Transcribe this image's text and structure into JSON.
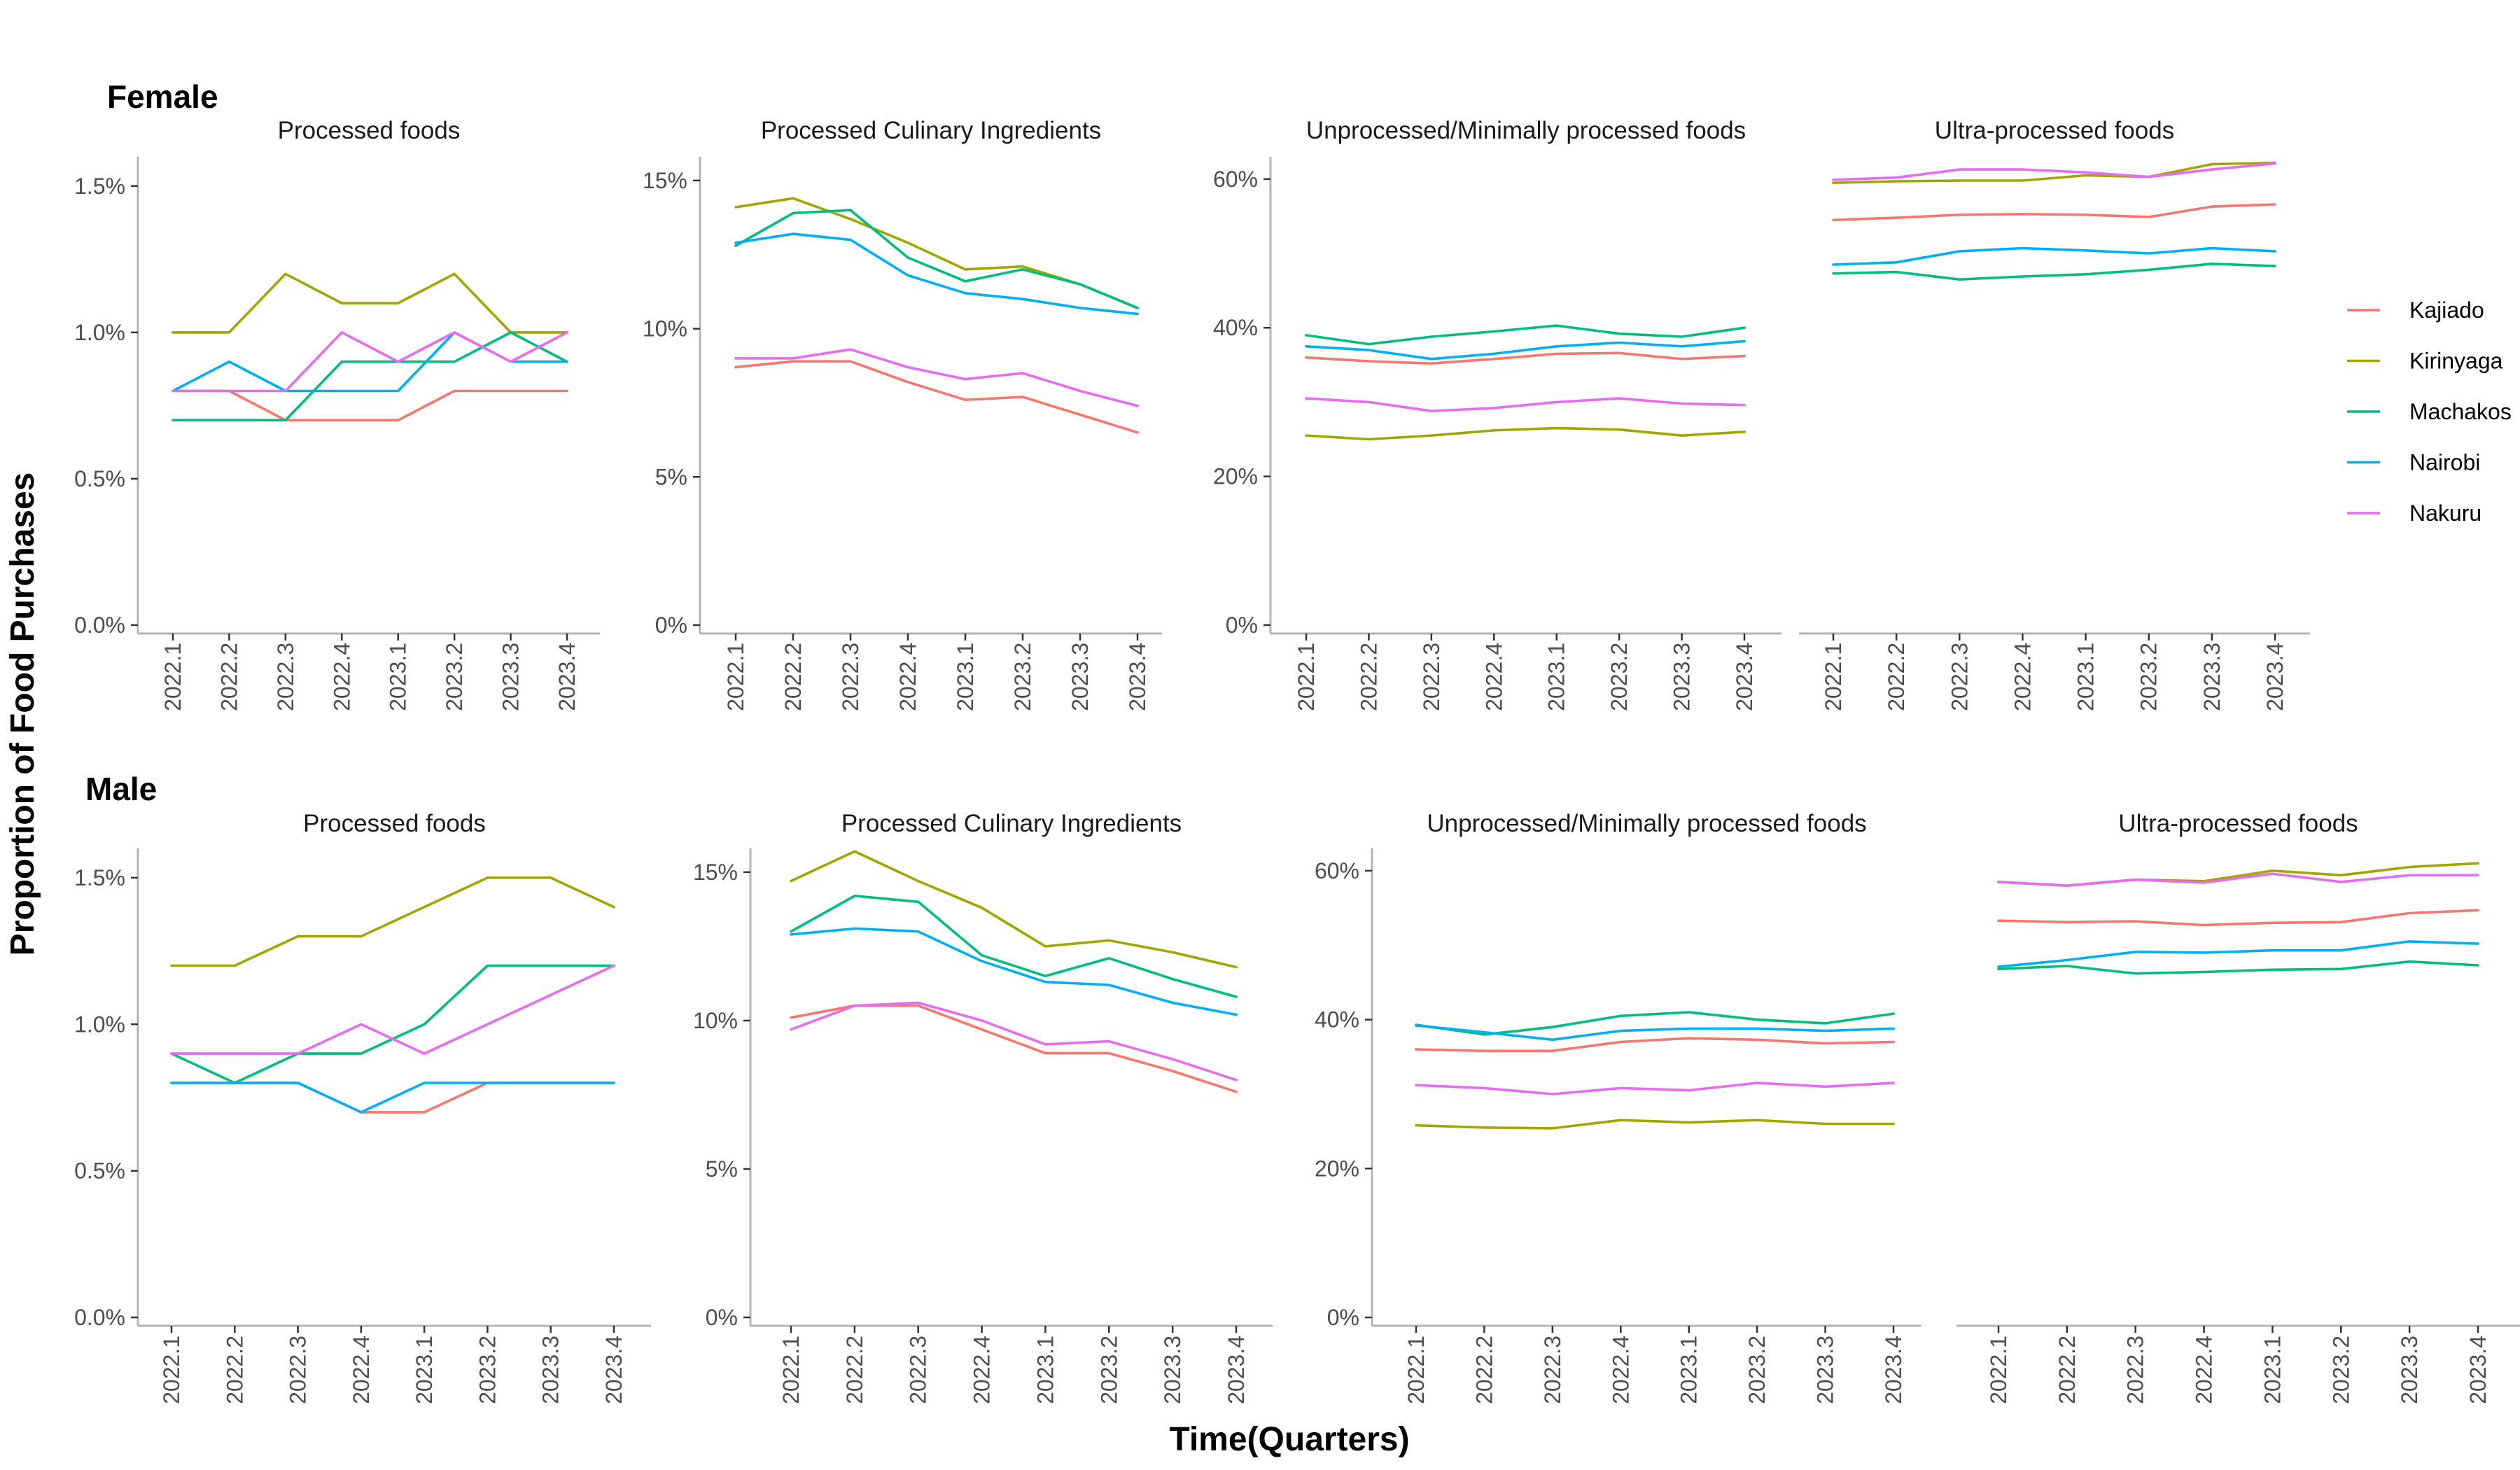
{
  "chart_data": {
    "type": "line",
    "y_axis_title": "Proportion of Food Purchases",
    "x_axis_title": "Time(Quarters)",
    "x": [
      "2022.1",
      "2022.2",
      "2022.3",
      "2022.4",
      "2023.1",
      "2023.2",
      "2023.3",
      "2023.4"
    ],
    "legend": {
      "placement": "right",
      "entries": [
        {
          "name": "Kajiado",
          "color": "#F8766D"
        },
        {
          "name": "Kirinyaga",
          "color": "#A3A500"
        },
        {
          "name": "Machakos",
          "color": "#00BF7D"
        },
        {
          "name": "Nairobi",
          "color": "#00B0F6"
        },
        {
          "name": "Nakuru",
          "color": "#E76BF3"
        }
      ]
    },
    "groups": [
      {
        "label": "Female",
        "panels": [
          {
            "title": "Processed foods",
            "ylim": [
              0,
              1.6
            ],
            "yticks": [
              0,
              0.5,
              1.0,
              1.5
            ],
            "ytick_labels": [
              "0.0%",
              "0.5%",
              "1.0%",
              "1.5%"
            ],
            "series": [
              {
                "name": "Kajiado",
                "values": [
                  0.8,
                  0.8,
                  0.7,
                  0.7,
                  0.7,
                  0.8,
                  0.8,
                  0.8
                ]
              },
              {
                "name": "Kirinyaga",
                "values": [
                  1.0,
                  1.0,
                  1.2,
                  1.1,
                  1.1,
                  1.2,
                  1.0,
                  1.0
                ]
              },
              {
                "name": "Machakos",
                "values": [
                  0.7,
                  0.7,
                  0.7,
                  0.9,
                  0.9,
                  0.9,
                  1.0,
                  0.9
                ]
              },
              {
                "name": "Nairobi",
                "values": [
                  0.8,
                  0.9,
                  0.8,
                  0.8,
                  0.8,
                  1.0,
                  0.9,
                  0.9
                ]
              },
              {
                "name": "Nakuru",
                "values": [
                  0.8,
                  0.8,
                  0.8,
                  1.0,
                  0.9,
                  1.0,
                  0.9,
                  1.0
                ]
              }
            ]
          },
          {
            "title": "Processed Culinary Ingredients",
            "ylim": [
              0,
              15.8
            ],
            "yticks": [
              0,
              5,
              10,
              15
            ],
            "ytick_labels": [
              "0%",
              "5%",
              "10%",
              "15%"
            ],
            "series": [
              {
                "name": "Kajiado",
                "values": [
                  8.7,
                  8.9,
                  8.9,
                  8.2,
                  7.6,
                  7.7,
                  7.1,
                  6.5
                ]
              },
              {
                "name": "Kirinyaga",
                "values": [
                  14.1,
                  14.4,
                  13.7,
                  12.9,
                  12.0,
                  12.1,
                  11.5,
                  10.7
                ]
              },
              {
                "name": "Machakos",
                "values": [
                  12.8,
                  13.9,
                  14.0,
                  12.4,
                  11.6,
                  12.0,
                  11.5,
                  10.7
                ]
              },
              {
                "name": "Nairobi",
                "values": [
                  12.9,
                  13.2,
                  13.0,
                  11.8,
                  11.2,
                  11.0,
                  10.7,
                  10.5
                ]
              },
              {
                "name": "Nakuru",
                "values": [
                  9.0,
                  9.0,
                  9.3,
                  8.7,
                  8.3,
                  8.5,
                  7.9,
                  7.4
                ]
              }
            ]
          },
          {
            "title": "Unprocessed/Minimally processed foods",
            "ylim": [
              0,
              63
            ],
            "yticks": [
              0,
              20,
              40,
              60
            ],
            "ytick_labels": [
              "0%",
              "20%",
              "40%",
              "60%"
            ],
            "series": [
              {
                "name": "Kajiado",
                "values": [
                  36.0,
                  35.5,
                  35.2,
                  35.8,
                  36.5,
                  36.6,
                  35.8,
                  36.2
                ]
              },
              {
                "name": "Kirinyaga",
                "values": [
                  25.5,
                  25.0,
                  25.5,
                  26.2,
                  26.5,
                  26.3,
                  25.5,
                  26.0
                ]
              },
              {
                "name": "Machakos",
                "values": [
                  39.0,
                  37.8,
                  38.8,
                  39.5,
                  40.3,
                  39.2,
                  38.8,
                  40.0
                ]
              },
              {
                "name": "Nairobi",
                "values": [
                  37.5,
                  37.0,
                  35.8,
                  36.5,
                  37.5,
                  38.0,
                  37.5,
                  38.2
                ]
              },
              {
                "name": "Nakuru",
                "values": [
                  30.5,
                  30.0,
                  28.8,
                  29.2,
                  30.0,
                  30.5,
                  29.8,
                  29.6
                ]
              }
            ]
          },
          {
            "title": "Ultra-processed foods",
            "ylim": [
              0,
              63
            ],
            "yticks": [
              0,
              20,
              40,
              60
            ],
            "ytick_labels": [
              "",
              "",
              "",
              ""
            ],
            "series": [
              {
                "name": "Kajiado",
                "values": [
                  54.5,
                  54.8,
                  55.2,
                  55.3,
                  55.2,
                  54.9,
                  56.3,
                  56.6
                ]
              },
              {
                "name": "Kirinyaga",
                "values": [
                  59.5,
                  59.7,
                  59.8,
                  59.8,
                  60.5,
                  60.3,
                  62.0,
                  62.2
                ]
              },
              {
                "name": "Machakos",
                "values": [
                  47.3,
                  47.5,
                  46.5,
                  46.9,
                  47.2,
                  47.8,
                  48.6,
                  48.3
                ]
              },
              {
                "name": "Nairobi",
                "values": [
                  48.5,
                  48.8,
                  50.3,
                  50.7,
                  50.4,
                  50.0,
                  50.7,
                  50.3
                ]
              },
              {
                "name": "Nakuru",
                "values": [
                  59.9,
                  60.2,
                  61.3,
                  61.3,
                  60.9,
                  60.3,
                  61.3,
                  62.1
                ]
              }
            ]
          }
        ]
      },
      {
        "label": "Male",
        "panels": [
          {
            "title": "Processed foods",
            "ylim": [
              0,
              1.6
            ],
            "yticks": [
              0,
              0.5,
              1.0,
              1.5
            ],
            "ytick_labels": [
              "0.0%",
              "0.5%",
              "1.0%",
              "1.5%"
            ],
            "series": [
              {
                "name": "Kajiado",
                "values": [
                  0.8,
                  0.8,
                  0.8,
                  0.7,
                  0.7,
                  0.8,
                  0.8,
                  0.8
                ]
              },
              {
                "name": "Kirinyaga",
                "values": [
                  1.2,
                  1.2,
                  1.3,
                  1.3,
                  1.4,
                  1.5,
                  1.5,
                  1.4
                ]
              },
              {
                "name": "Machakos",
                "values": [
                  0.9,
                  0.8,
                  0.9,
                  0.9,
                  1.0,
                  1.2,
                  1.2,
                  1.2
                ]
              },
              {
                "name": "Nairobi",
                "values": [
                  0.8,
                  0.8,
                  0.8,
                  0.7,
                  0.8,
                  0.8,
                  0.8,
                  0.8
                ]
              },
              {
                "name": "Nakuru",
                "values": [
                  0.9,
                  0.9,
                  0.9,
                  1.0,
                  0.9,
                  1.0,
                  1.1,
                  1.2
                ]
              }
            ]
          },
          {
            "title": "Processed Culinary Ingredients",
            "ylim": [
              0,
              15.8
            ],
            "yticks": [
              0,
              5,
              10,
              15
            ],
            "ytick_labels": [
              "0%",
              "5%",
              "10%",
              "15%"
            ],
            "series": [
              {
                "name": "Kajiado",
                "values": [
                  10.1,
                  10.5,
                  10.5,
                  9.7,
                  8.9,
                  8.9,
                  8.3,
                  7.6
                ]
              },
              {
                "name": "Kirinyaga",
                "values": [
                  14.7,
                  15.7,
                  14.7,
                  13.8,
                  12.5,
                  12.7,
                  12.3,
                  11.8
                ]
              },
              {
                "name": "Machakos",
                "values": [
                  13.0,
                  14.2,
                  14.0,
                  12.2,
                  11.5,
                  12.1,
                  11.4,
                  10.8
                ]
              },
              {
                "name": "Nairobi",
                "values": [
                  12.9,
                  13.1,
                  13.0,
                  12.0,
                  11.3,
                  11.2,
                  10.6,
                  10.2
                ]
              },
              {
                "name": "Nakuru",
                "values": [
                  9.7,
                  10.5,
                  10.6,
                  10.0,
                  9.2,
                  9.3,
                  8.7,
                  8.0
                ]
              }
            ]
          },
          {
            "title": "Unprocessed/Minimally processed foods",
            "ylim": [
              0,
              63
            ],
            "yticks": [
              0,
              20,
              40,
              60
            ],
            "ytick_labels": [
              "0%",
              "20%",
              "40%",
              "60%"
            ],
            "series": [
              {
                "name": "Kajiado",
                "values": [
                  36.0,
                  35.8,
                  35.8,
                  37.0,
                  37.5,
                  37.3,
                  36.8,
                  37.0
                ]
              },
              {
                "name": "Kirinyaga",
                "values": [
                  25.8,
                  25.5,
                  25.4,
                  26.5,
                  26.2,
                  26.5,
                  26.0,
                  26.0
                ]
              },
              {
                "name": "Machakos",
                "values": [
                  39.3,
                  38.0,
                  39.0,
                  40.5,
                  41.0,
                  40.0,
                  39.5,
                  40.8
                ]
              },
              {
                "name": "Nairobi",
                "values": [
                  39.2,
                  38.3,
                  37.3,
                  38.5,
                  38.8,
                  38.8,
                  38.5,
                  38.8
                ]
              },
              {
                "name": "Nakuru",
                "values": [
                  31.2,
                  30.8,
                  30.0,
                  30.8,
                  30.5,
                  31.5,
                  31.0,
                  31.5
                ]
              }
            ]
          },
          {
            "title": "Ultra-processed foods",
            "ylim": [
              0,
              63
            ],
            "yticks": [
              0,
              20,
              40,
              60
            ],
            "ytick_labels": [
              "",
              "",
              "",
              ""
            ],
            "series": [
              {
                "name": "Kajiado",
                "values": [
                  53.3,
                  53.1,
                  53.2,
                  52.7,
                  53.0,
                  53.1,
                  54.3,
                  54.7
                ]
              },
              {
                "name": "Kirinyaga",
                "values": [
                  58.5,
                  58.0,
                  58.8,
                  58.6,
                  60.0,
                  59.4,
                  60.5,
                  61.0
                ]
              },
              {
                "name": "Machakos",
                "values": [
                  46.8,
                  47.2,
                  46.2,
                  46.4,
                  46.7,
                  46.8,
                  47.8,
                  47.3
                ]
              },
              {
                "name": "Nairobi",
                "values": [
                  47.1,
                  48.0,
                  49.1,
                  49.0,
                  49.3,
                  49.3,
                  50.5,
                  50.2
                ]
              },
              {
                "name": "Nakuru",
                "values": [
                  58.5,
                  58.0,
                  58.8,
                  58.4,
                  59.6,
                  58.5,
                  59.4,
                  59.4
                ]
              }
            ]
          }
        ]
      }
    ]
  }
}
